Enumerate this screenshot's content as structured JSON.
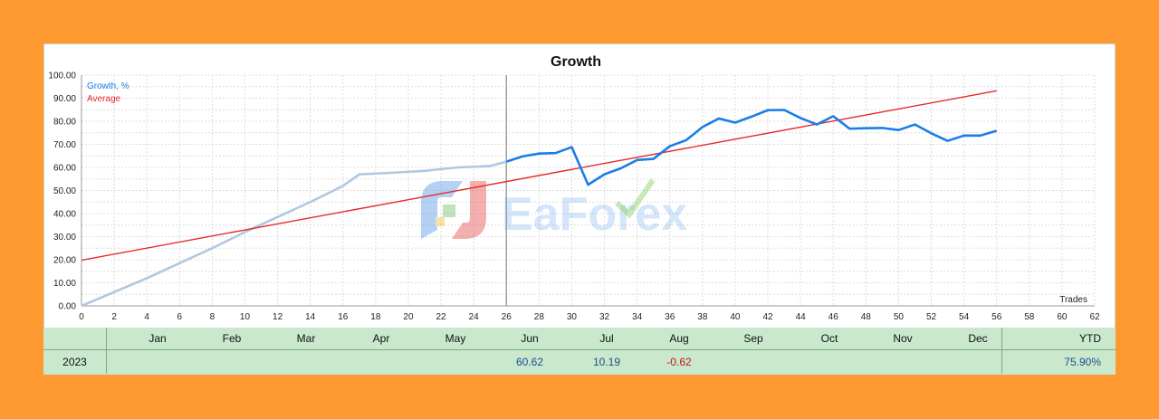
{
  "title": "Growth",
  "legend": {
    "growth_label": "Growth, %",
    "average_label": "Average"
  },
  "watermark": "EaForex",
  "colors": {
    "background": "#ff9a33",
    "panel": "#c9e8cc",
    "growth_line": "#1a7de8",
    "growth_line_history": "#b0c8e0",
    "average_line": "#e52b2b",
    "positive_value": "#1f4f8f",
    "negative_value": "#c0191b"
  },
  "chart_data": {
    "type": "line",
    "title": "Growth",
    "xlabel": "Trades",
    "ylabel": "",
    "xlim": [
      0,
      62
    ],
    "ylim": [
      0,
      100
    ],
    "x_ticks": [
      0,
      2,
      4,
      6,
      8,
      10,
      12,
      14,
      16,
      18,
      20,
      22,
      24,
      26,
      28,
      30,
      32,
      34,
      36,
      38,
      40,
      42,
      44,
      46,
      48,
      50,
      52,
      54,
      56,
      58,
      60,
      62
    ],
    "y_ticks": [
      "0.00",
      "10.00",
      "20.00",
      "30.00",
      "40.00",
      "50.00",
      "60.00",
      "70.00",
      "80.00",
      "90.00",
      "100.00"
    ],
    "grid": true,
    "legend_position": "top-left",
    "history_split_x": 26,
    "series": [
      {
        "name": "Growth, %",
        "x": [
          0,
          2,
          4,
          6,
          8,
          10,
          12,
          14,
          16,
          17,
          19,
          21,
          23,
          25,
          26,
          27,
          28,
          29,
          30,
          31,
          32,
          33,
          34,
          35,
          36,
          37,
          38,
          39,
          40,
          41,
          42,
          43,
          44,
          45,
          46,
          47,
          48,
          49,
          50,
          51,
          52,
          53,
          54,
          55,
          56
        ],
        "y": [
          0,
          6,
          12,
          18.5,
          25,
          32,
          38.5,
          45,
          52,
          57,
          57.7,
          58.5,
          60,
          60.6,
          62.5,
          64.8,
          66,
          66.2,
          68.8,
          52.5,
          57,
          59.6,
          63.2,
          63.7,
          69.2,
          71.8,
          77.5,
          81.2,
          79.4,
          82,
          84.8,
          84.9,
          81.4,
          78.6,
          82.2,
          76.8,
          77,
          77.1,
          76.2,
          78.6,
          74.8,
          71.5,
          73.8,
          73.8,
          75.9
        ]
      },
      {
        "name": "Average",
        "x": [
          0,
          56
        ],
        "y": [
          19.8,
          93.2
        ]
      }
    ]
  },
  "table": {
    "months": [
      "Jan",
      "Feb",
      "Mar",
      "Apr",
      "May",
      "Jun",
      "Jul",
      "Aug",
      "Sep",
      "Oct",
      "Nov",
      "Dec"
    ],
    "ytd_label": "YTD",
    "year": "2023",
    "values": [
      "",
      "",
      "",
      "",
      "",
      "60.62",
      "10.19",
      "-0.62",
      "",
      "",
      "",
      ""
    ],
    "ytd_value": "75.90%"
  }
}
